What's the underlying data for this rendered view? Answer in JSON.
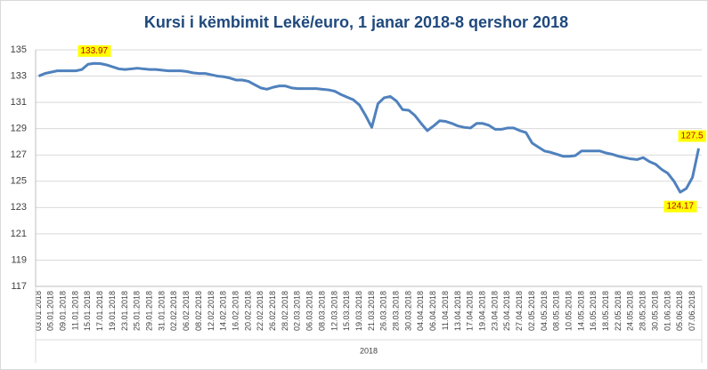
{
  "chart_data": {
    "type": "line",
    "title": "Kursi i këmbimit Lekë/euro, 1 janar 2018-8 qershor 2018",
    "x_group_label": "2018",
    "categories": [
      "03.01.2018",
      null,
      "05.01.2018",
      null,
      "09.01.2018",
      null,
      "11.01.2018",
      null,
      "15.01.2018",
      null,
      "17.01.2018",
      null,
      "19.01.2018",
      null,
      "23.01.2018",
      null,
      "25.01.2018",
      null,
      "29.01.2018",
      null,
      "31.01.2018",
      null,
      "02.02.2018",
      null,
      "06.02.2018",
      null,
      "08.02.2018",
      null,
      "12.02.2018",
      null,
      "14.02.2018",
      null,
      "16.02.2018",
      null,
      "20.02.2018",
      null,
      "22.02.2018",
      null,
      "26.02.2018",
      null,
      "28.02.2018",
      null,
      "02.03.2018",
      null,
      "06.03.2018",
      null,
      "08.03.2018",
      null,
      "12.03.2018",
      null,
      "15.03.2018",
      null,
      "19.03.2018",
      null,
      "21.03.2018",
      null,
      "26.03.2018",
      null,
      "28.03.2018",
      null,
      "30.03.2018",
      null,
      "04.04.2018",
      null,
      "06.04.2018",
      null,
      "11.04.2018",
      null,
      "13.04.2018",
      null,
      "17.04.2018",
      null,
      "19.04.2018",
      null,
      "23.04.2018",
      null,
      "25.04.2018",
      null,
      "27.04.2018",
      null,
      "02.05.2018",
      null,
      "04.05.2018",
      null,
      "08.05.2018",
      null,
      "10.05.2018",
      null,
      "14.05.2018",
      null,
      "16.05.2018",
      null,
      "18.05.2018",
      null,
      "22.05.2018",
      null,
      "24.05.2018",
      null,
      "28.05.2018",
      null,
      "30.05.2018",
      null,
      "01.06.2018",
      null,
      "05.06.2018",
      null,
      "07.06.2018",
      null
    ],
    "series": [
      {
        "name": "Lekë/euro",
        "color": "#4f81bd",
        "values": [
          133.0,
          133.2,
          133.3,
          133.4,
          133.4,
          133.4,
          133.4,
          133.5,
          133.9,
          133.97,
          133.95,
          133.85,
          133.7,
          133.55,
          133.5,
          133.55,
          133.6,
          133.55,
          133.5,
          133.5,
          133.45,
          133.4,
          133.4,
          133.4,
          133.35,
          133.25,
          133.2,
          133.2,
          133.1,
          133.0,
          132.95,
          132.85,
          132.7,
          132.7,
          132.6,
          132.35,
          132.1,
          132.0,
          132.15,
          132.25,
          132.25,
          132.1,
          132.05,
          132.05,
          132.05,
          132.05,
          132.0,
          131.95,
          131.85,
          131.6,
          131.4,
          131.2,
          130.8,
          130.0,
          129.1,
          130.9,
          131.35,
          131.45,
          131.1,
          130.45,
          130.4,
          130.0,
          129.4,
          128.85,
          129.2,
          129.6,
          129.55,
          129.4,
          129.2,
          129.1,
          129.05,
          129.4,
          129.4,
          129.25,
          128.95,
          128.95,
          129.05,
          129.05,
          128.85,
          128.7,
          127.9,
          127.6,
          127.3,
          127.2,
          127.05,
          126.9,
          126.9,
          126.95,
          127.3,
          127.3,
          127.3,
          127.3,
          127.15,
          127.05,
          126.9,
          126.8,
          126.7,
          126.65,
          126.8,
          126.5,
          126.3,
          125.9,
          125.6,
          125.0,
          124.17,
          124.45,
          125.3,
          127.5
        ]
      }
    ],
    "data_labels_at": [
      9,
      104,
      107
    ],
    "ylim": [
      117,
      135
    ],
    "yticks": [
      117,
      119,
      121,
      123,
      125,
      127,
      129,
      131,
      133,
      135
    ],
    "grid": true
  }
}
